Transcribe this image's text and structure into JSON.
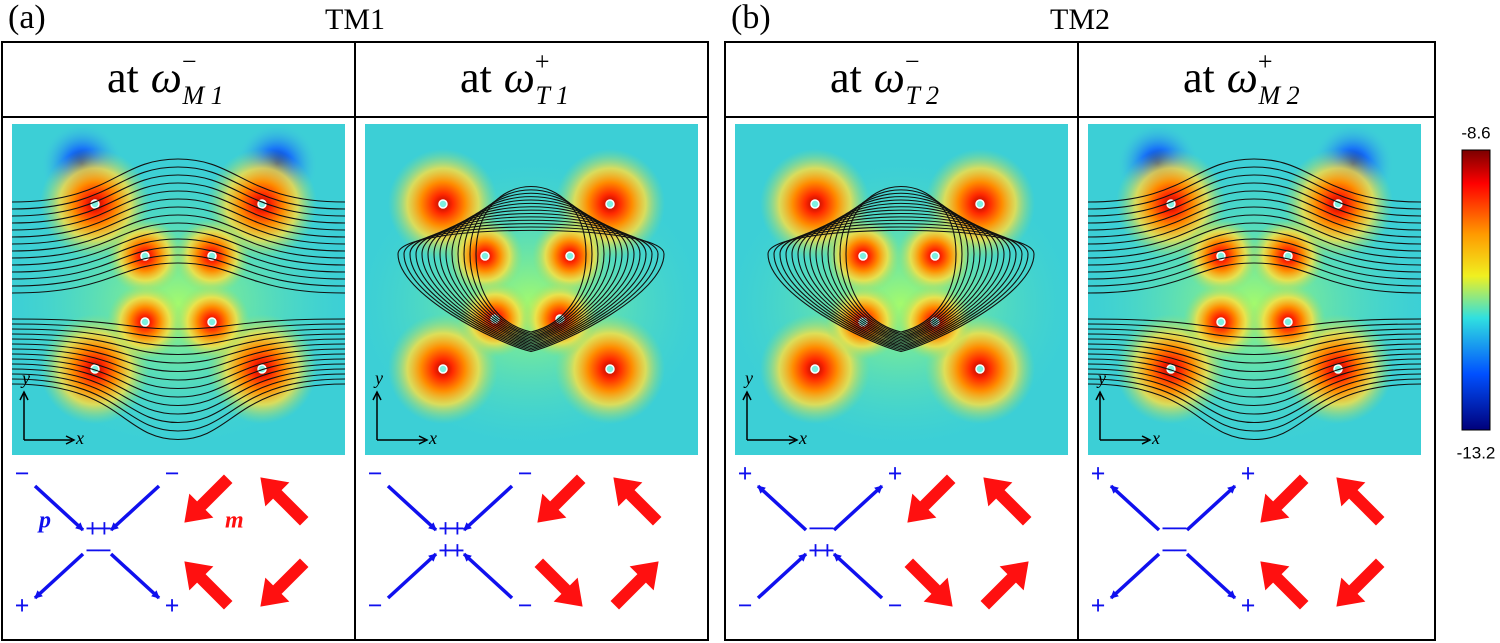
{
  "panels": [
    {
      "label": "(a)",
      "title": "TM1",
      "columns": [
        {
          "heading": "at",
          "symbol": "ω",
          "sup": "−",
          "sub": "M 1",
          "axis_x": "x",
          "axis_y": "y",
          "corner_signs": [
            "−",
            "−",
            "+",
            "+"
          ],
          "center_signs": [
            "++",
            "−−"
          ],
          "p_label": "p",
          "m_label": "m"
        },
        {
          "heading": "at",
          "symbol": "ω",
          "sup": "+",
          "sub": "T 1",
          "axis_x": "x",
          "axis_y": "y",
          "corner_signs": [
            "−",
            "−",
            "−",
            "−"
          ],
          "center_signs": [
            "++",
            "++"
          ]
        }
      ]
    },
    {
      "label": "(b)",
      "title": "TM2",
      "columns": [
        {
          "heading": "at",
          "symbol": "ω",
          "sup": "−",
          "sub": "T 2",
          "axis_x": "x",
          "axis_y": "y",
          "corner_signs": [
            "+",
            "+",
            "−",
            "−"
          ],
          "center_signs": [
            "−−",
            "++"
          ]
        },
        {
          "heading": "at",
          "symbol": "ω",
          "sup": "+",
          "sub": "M 2",
          "axis_x": "x",
          "axis_y": "y",
          "corner_signs": [
            "+",
            "+",
            "+",
            "+"
          ],
          "center_signs": [
            "−−",
            "−−"
          ]
        }
      ]
    }
  ],
  "colorbar": {
    "max": "-8.6",
    "min": "-13.2"
  }
}
